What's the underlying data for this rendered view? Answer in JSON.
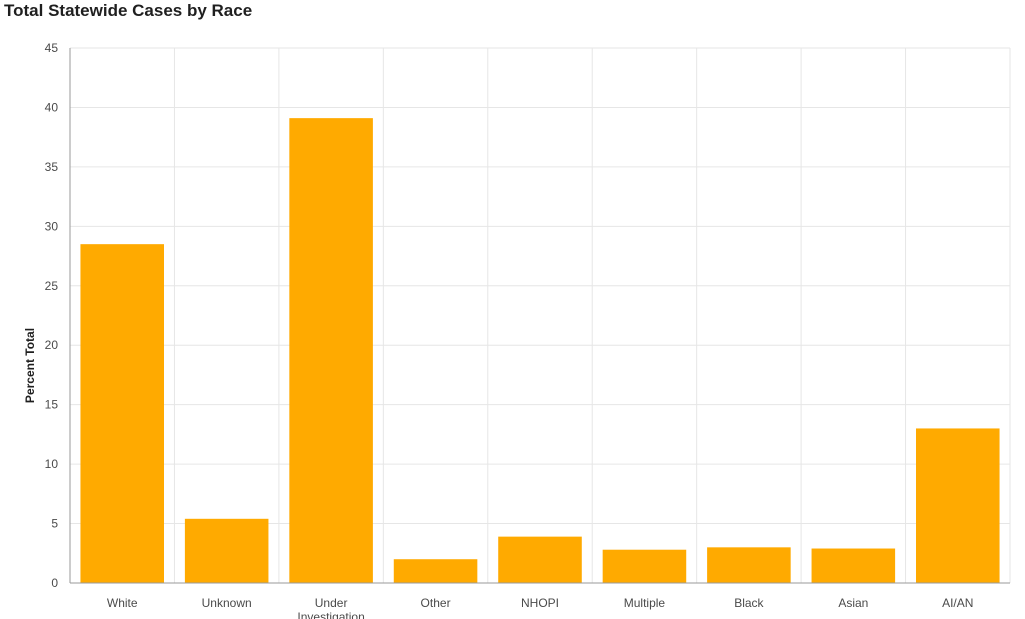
{
  "chart_data": {
    "type": "bar",
    "title": "Total Statewide Cases by Race",
    "xlabel": "",
    "ylabel": "Percent Total",
    "categories": [
      "White",
      "Unknown",
      "Under Investigation",
      "Other",
      "NHOPI",
      "Multiple",
      "Black",
      "Asian",
      "AI/AN"
    ],
    "values": [
      28.5,
      5.4,
      39.1,
      2.0,
      3.9,
      2.8,
      3.0,
      2.9,
      13.0
    ],
    "ylim": [
      0,
      45
    ],
    "yticks": [
      0,
      5,
      10,
      15,
      20,
      25,
      30,
      35,
      40,
      45
    ],
    "grid": true,
    "bar_color": "#ffaa00"
  }
}
